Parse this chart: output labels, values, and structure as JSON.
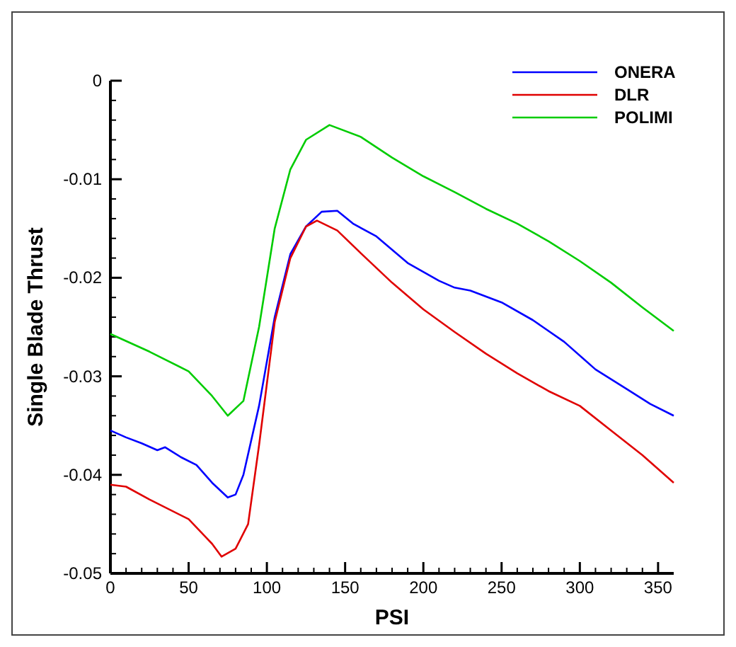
{
  "chart_data": {
    "type": "line",
    "xlabel": "PSI",
    "ylabel": "Single Blade Thrust",
    "xlim": [
      0,
      360
    ],
    "ylim": [
      -0.05,
      0
    ],
    "xticks": [
      0,
      {
        "value": 10,
        "label": null
      },
      {
        "value": 20,
        "label": null
      },
      {
        "value": 30,
        "label": null
      },
      {
        "value": 40,
        "label": null
      },
      50,
      {
        "value": 60,
        "label": null
      },
      {
        "value": 70,
        "label": null
      },
      {
        "value": 80,
        "label": null
      },
      {
        "value": 90,
        "label": null
      },
      100,
      {
        "value": 110,
        "label": null
      },
      {
        "value": 120,
        "label": null
      },
      {
        "value": 130,
        "label": null
      },
      {
        "value": 140,
        "label": null
      },
      150,
      {
        "value": 160,
        "label": null
      },
      {
        "value": 170,
        "label": null
      },
      {
        "value": 180,
        "label": null
      },
      {
        "value": 190,
        "label": null
      },
      200,
      {
        "value": 210,
        "label": null
      },
      {
        "value": 220,
        "label": null
      },
      {
        "value": 230,
        "label": null
      },
      {
        "value": 240,
        "label": null
      },
      250,
      {
        "value": 260,
        "label": null
      },
      {
        "value": 270,
        "label": null
      },
      {
        "value": 280,
        "label": null
      },
      {
        "value": 290,
        "label": null
      },
      300,
      {
        "value": 310,
        "label": null
      },
      {
        "value": 320,
        "label": null
      },
      {
        "value": 330,
        "label": null
      },
      {
        "value": 340,
        "label": null
      },
      350
    ],
    "yticks": [
      -0.05,
      {
        "value": -0.048,
        "label": null
      },
      {
        "value": -0.046,
        "label": null
      },
      {
        "value": -0.044,
        "label": null
      },
      {
        "value": -0.042,
        "label": null
      },
      -0.04,
      {
        "value": -0.038,
        "label": null
      },
      {
        "value": -0.036,
        "label": null
      },
      {
        "value": -0.034,
        "label": null
      },
      {
        "value": -0.032,
        "label": null
      },
      -0.03,
      {
        "value": -0.028,
        "label": null
      },
      {
        "value": -0.026,
        "label": null
      },
      {
        "value": -0.024,
        "label": null
      },
      {
        "value": -0.022,
        "label": null
      },
      -0.02,
      {
        "value": -0.018,
        "label": null
      },
      {
        "value": -0.016,
        "label": null
      },
      {
        "value": -0.014,
        "label": null
      },
      {
        "value": -0.012,
        "label": null
      },
      -0.01,
      {
        "value": -0.008,
        "label": null
      },
      {
        "value": -0.006,
        "label": null
      },
      {
        "value": -0.004,
        "label": null
      },
      {
        "value": -0.002,
        "label": null
      },
      0
    ],
    "legend": "top right",
    "grid": false,
    "marker": "none",
    "line_style": "solid",
    "series": [
      {
        "name": "ONERA",
        "color": "#0000ff",
        "x": [
          0,
          10,
          20,
          30,
          35,
          45,
          55,
          65,
          75,
          80,
          85,
          95,
          105,
          115,
          125,
          135,
          145,
          155,
          170,
          190,
          210,
          220,
          230,
          250,
          270,
          290,
          310,
          330,
          345,
          360
        ],
        "values": [
          -0.0355,
          -0.0362,
          -0.0368,
          -0.0375,
          -0.0372,
          -0.0382,
          -0.039,
          -0.0408,
          -0.0423,
          -0.042,
          -0.04,
          -0.033,
          -0.024,
          -0.0176,
          -0.0148,
          -0.0133,
          -0.0132,
          -0.0145,
          -0.0158,
          -0.0185,
          -0.0203,
          -0.021,
          -0.0213,
          -0.0225,
          -0.0243,
          -0.0265,
          -0.0293,
          -0.0313,
          -0.0328,
          -0.034
        ]
      },
      {
        "name": "DLR",
        "color": "#e00000",
        "x": [
          0,
          10,
          25,
          50,
          65,
          71,
          80,
          88,
          95,
          105,
          115,
          125,
          132,
          145,
          160,
          180,
          200,
          220,
          240,
          260,
          280,
          300,
          320,
          340,
          360
        ],
        "values": [
          -0.041,
          -0.0412,
          -0.0425,
          -0.0445,
          -0.047,
          -0.0483,
          -0.0475,
          -0.045,
          -0.037,
          -0.0245,
          -0.018,
          -0.0148,
          -0.0142,
          -0.0152,
          -0.0175,
          -0.0205,
          -0.0232,
          -0.0255,
          -0.0277,
          -0.0297,
          -0.0315,
          -0.033,
          -0.0355,
          -0.038,
          -0.0408
        ]
      },
      {
        "name": "POLIMI",
        "color": "#00cc00",
        "x": [
          0,
          25,
          50,
          65,
          75,
          85,
          95,
          105,
          115,
          125,
          140,
          160,
          180,
          200,
          220,
          240,
          260,
          280,
          300,
          320,
          340,
          360
        ],
        "values": [
          -0.0257,
          -0.0275,
          -0.0295,
          -0.032,
          -0.034,
          -0.0325,
          -0.025,
          -0.015,
          -0.009,
          -0.006,
          -0.0045,
          -0.0057,
          -0.0078,
          -0.0097,
          -0.0113,
          -0.013,
          -0.0145,
          -0.0163,
          -0.0183,
          -0.0205,
          -0.023,
          -0.0254
        ]
      }
    ]
  }
}
